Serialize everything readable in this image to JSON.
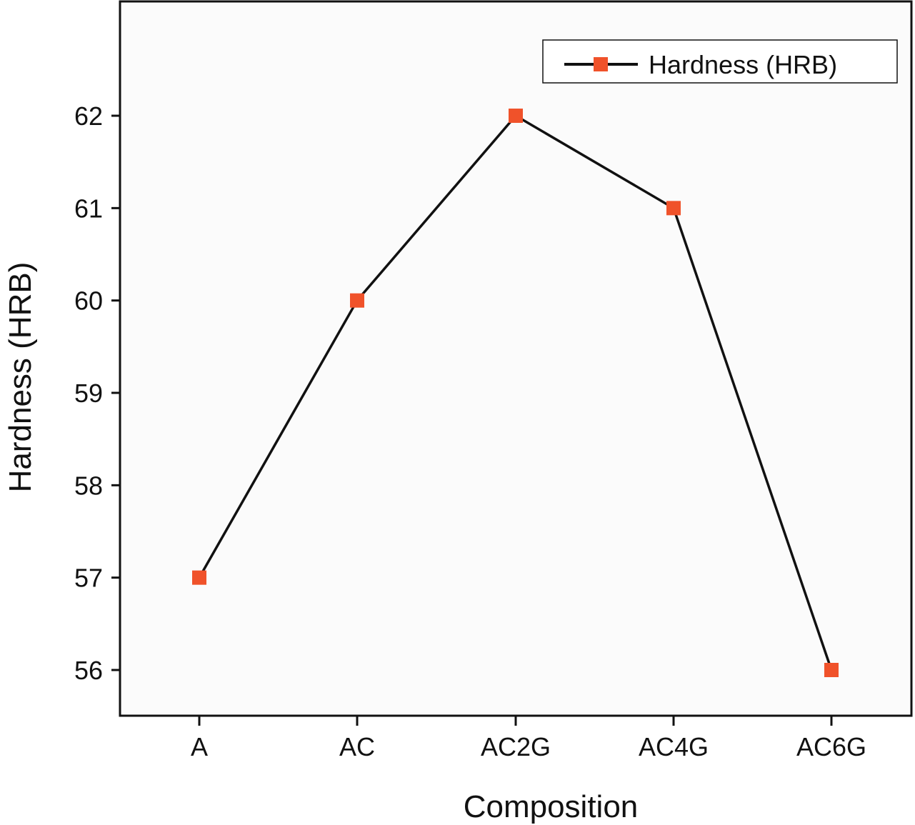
{
  "chart_data": {
    "type": "line",
    "title": "",
    "xlabel": "Composition",
    "ylabel": "Hardness (HRB)",
    "categories": [
      "A",
      "AC",
      "AC2G",
      "AC4G",
      "AC6G"
    ],
    "series": [
      {
        "name": "Hardness (HRB)",
        "values": [
          57,
          60,
          62,
          61,
          56
        ],
        "line_color": "#111111",
        "marker": "square",
        "marker_color": "#f0522a"
      }
    ],
    "ylim": [
      55.5,
      63.2
    ],
    "yticks": [
      56,
      57,
      58,
      59,
      60,
      61,
      62
    ],
    "ytick_labels": [
      "56",
      "57",
      "58",
      "59",
      "60",
      "61",
      "62"
    ],
    "grid": false,
    "legend_position": "top-right",
    "plot_background": "#fbfbfb"
  }
}
